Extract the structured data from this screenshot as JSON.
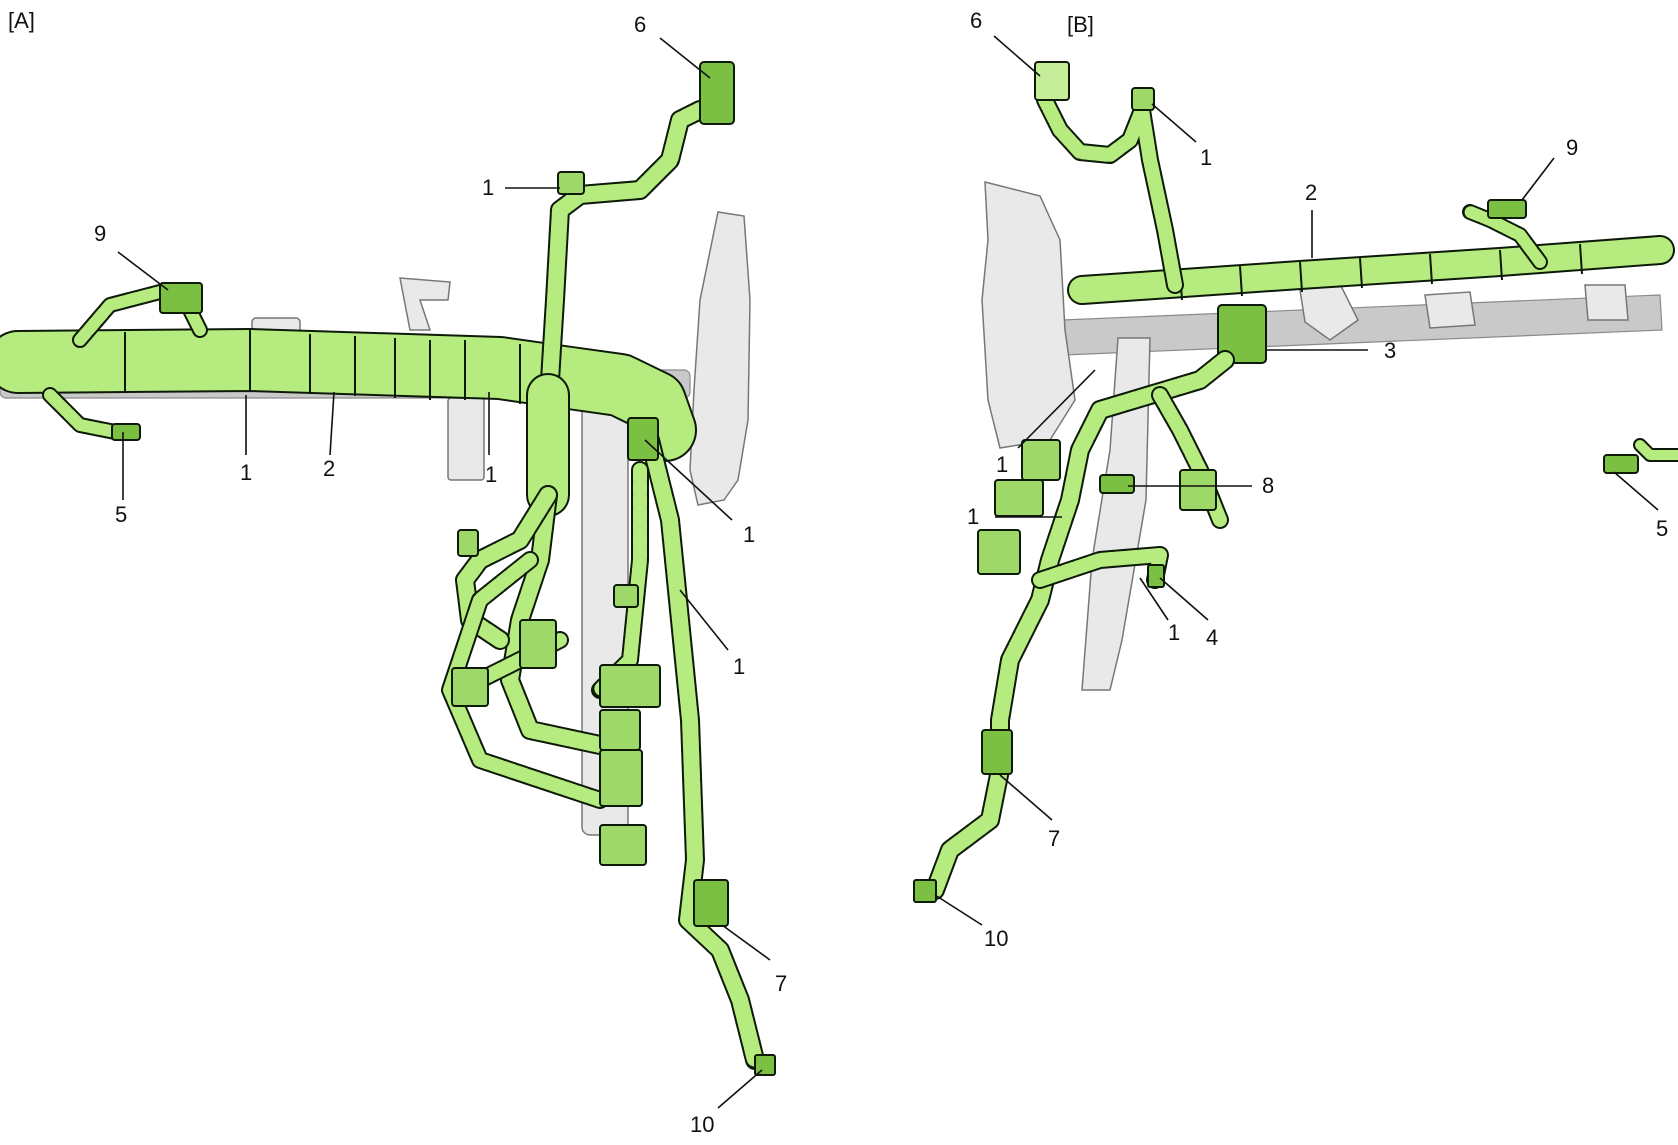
{
  "panels": {
    "a": {
      "tag": "[A]"
    },
    "b": {
      "tag": "[B]"
    }
  },
  "callouts_a": [
    "1",
    "2",
    "1",
    "1",
    "5",
    "9",
    "6",
    "1",
    "1",
    "7",
    "10"
  ],
  "callouts_b": [
    "6",
    "1",
    "9",
    "2",
    "3",
    "1",
    "8",
    "1",
    "1",
    "4",
    "5",
    "7",
    "10"
  ],
  "colors": {
    "harness": "#b6ec7f",
    "harness_shade": "#8fcf55",
    "tape": "#0d1a08",
    "connector": "#7bc043",
    "metal": "#e9e9e9",
    "leader": "#111111"
  },
  "icons": [
    "harness-wire",
    "connector",
    "clip",
    "crossbar-pipe",
    "steering-bracket",
    "leader-line"
  ]
}
